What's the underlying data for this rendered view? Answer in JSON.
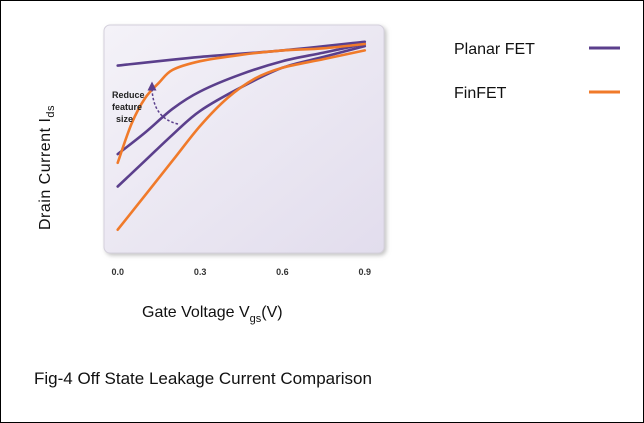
{
  "caption": "Fig-4 Off State Leakage Current Comparison",
  "chart_data": {
    "type": "line",
    "xlabel": {
      "main": "Gate Voltage V",
      "sub": "gs",
      "tail": "(V)"
    },
    "ylabel": {
      "main": "Drain Current I",
      "sub": "ds"
    },
    "xticks": [
      "0.0",
      "0.3",
      "0.6",
      "0.9"
    ],
    "xlim": [
      -0.05,
      0.97
    ],
    "ylim": [
      0,
      1
    ],
    "grid": false,
    "legend_placement": "right",
    "annotation": "Reduce feature size",
    "series": [
      {
        "name": "Planar FET",
        "color": "#5b3f8c",
        "curves": [
          {
            "x": [
              0.0,
              0.3,
              0.6,
              0.9
            ],
            "y": [
              0.84,
              0.88,
              0.91,
              0.95
            ]
          },
          {
            "x": [
              0.0,
              0.1,
              0.2,
              0.3,
              0.45,
              0.6,
              0.75,
              0.9
            ],
            "y": [
              0.43,
              0.53,
              0.64,
              0.72,
              0.8,
              0.86,
              0.9,
              0.94
            ]
          },
          {
            "x": [
              0.0,
              0.1,
              0.2,
              0.3,
              0.45,
              0.6,
              0.75,
              0.9
            ],
            "y": [
              0.28,
              0.4,
              0.52,
              0.63,
              0.74,
              0.83,
              0.88,
              0.93
            ]
          }
        ]
      },
      {
        "name": "FinFET",
        "color": "#f07a2a",
        "curves": [
          {
            "x": [
              0.0,
              0.05,
              0.1,
              0.15,
              0.2,
              0.3,
              0.45,
              0.6,
              0.75,
              0.9
            ],
            "y": [
              0.39,
              0.57,
              0.69,
              0.76,
              0.82,
              0.86,
              0.89,
              0.91,
              0.92,
              0.94
            ]
          },
          {
            "x": [
              0.0,
              0.1,
              0.2,
              0.3,
              0.4,
              0.5,
              0.6,
              0.75,
              0.9
            ],
            "y": [
              0.08,
              0.24,
              0.4,
              0.56,
              0.69,
              0.78,
              0.83,
              0.87,
              0.91
            ]
          }
        ]
      }
    ]
  }
}
